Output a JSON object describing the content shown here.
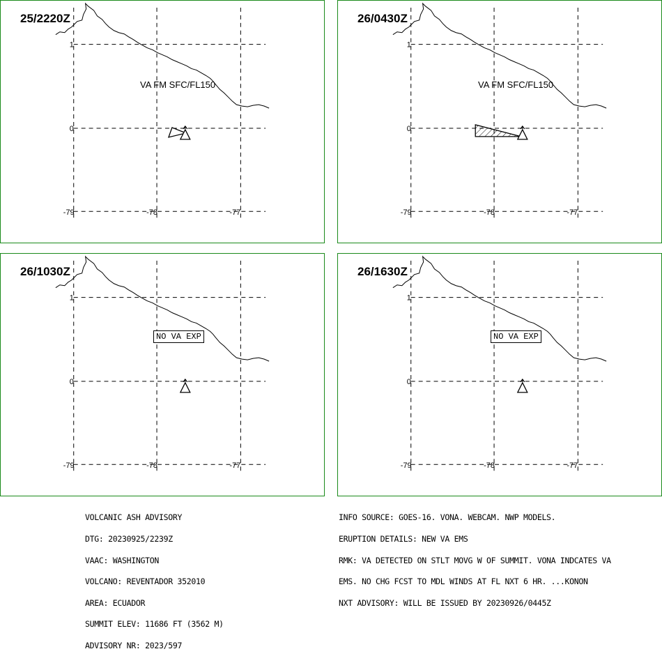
{
  "panels": [
    {
      "time": "25/2220Z",
      "ash_label": "VA FM SFC/FL150",
      "nova_label": ""
    },
    {
      "time": "26/0430Z",
      "ash_label": "VA FM SFC/FL150",
      "nova_label": ""
    },
    {
      "time": "26/1030Z",
      "ash_label": "",
      "nova_label": "NO VA EXP"
    },
    {
      "time": "26/1630Z",
      "ash_label": "",
      "nova_label": "NO VA EXP"
    }
  ],
  "axes": {
    "lat_ticks": [
      "1",
      "0"
    ],
    "lon_ticks": [
      "-79",
      "-78",
      "-77"
    ]
  },
  "advisory_left": [
    "VOLCANIC ASH ADVISORY",
    "DTG: 20230925/2239Z",
    "VAAC: WASHINGTON",
    "VOLCANO: REVENTADOR 352010",
    "AREA: ECUADOR",
    "SUMMIT ELEV: 11686 FT (3562 M)",
    "ADVISORY NR: 2023/597"
  ],
  "advisory_right": [
    "INFO SOURCE: GOES-16. VONA. WEBCAM. NWP MODELS.",
    "ERUPTION DETAILS: NEW VA EMS",
    "RMK: VA DETECTED ON STLT MOVG W OF SUMMIT. VONA INDCATES VA",
    "EMS. NO CHG FCST TO MDL WINDS AT FL NXT 6 HR. ...KONON",
    "NXT ADVISORY: WILL BE ISSUED BY 20230926/0445Z"
  ],
  "colors": {
    "panel_border": "#1a8a1a",
    "lines": "#000000"
  },
  "icons": {
    "volcano": "volcano-triangle-icon",
    "ash_cloud": "ash-polygon-icon"
  }
}
